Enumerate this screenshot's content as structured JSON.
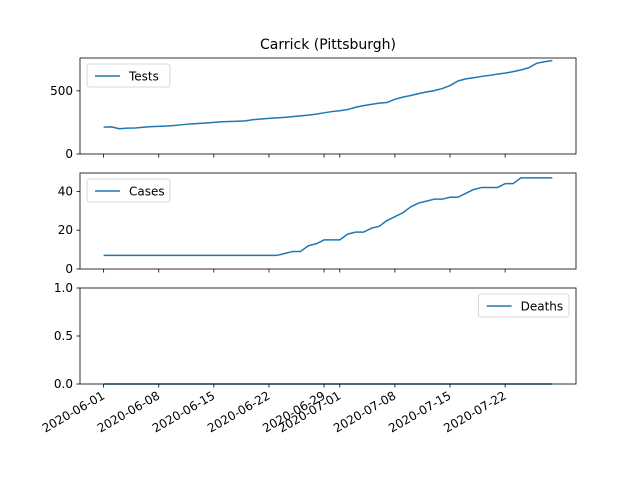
{
  "chart_data": {
    "type": "line",
    "title": "Carrick (Pittsburgh)",
    "line_color": "#1f77b4",
    "x_tick_labels": [
      "2020-06-01",
      "2020-06-08",
      "2020-06-15",
      "2020-06-22",
      "2020-06-29",
      "2020-07-01",
      "2020-07-08",
      "2020-07-15",
      "2020-07-22"
    ],
    "x_tick_dates": [
      "2020-06-01",
      "2020-06-08",
      "2020-06-15",
      "2020-06-22",
      "2020-06-29",
      "2020-07-01",
      "2020-07-08",
      "2020-07-15",
      "2020-07-22"
    ],
    "x_range": [
      "2020-05-29",
      "2020-07-31"
    ],
    "x": [
      "2020-06-01",
      "2020-06-02",
      "2020-06-03",
      "2020-06-04",
      "2020-06-05",
      "2020-06-06",
      "2020-06-07",
      "2020-06-08",
      "2020-06-09",
      "2020-06-10",
      "2020-06-11",
      "2020-06-12",
      "2020-06-13",
      "2020-06-14",
      "2020-06-15",
      "2020-06-16",
      "2020-06-17",
      "2020-06-18",
      "2020-06-19",
      "2020-06-20",
      "2020-06-21",
      "2020-06-22",
      "2020-06-23",
      "2020-06-24",
      "2020-06-25",
      "2020-06-26",
      "2020-06-27",
      "2020-06-28",
      "2020-06-29",
      "2020-06-30",
      "2020-07-01",
      "2020-07-02",
      "2020-07-03",
      "2020-07-04",
      "2020-07-05",
      "2020-07-06",
      "2020-07-07",
      "2020-07-08",
      "2020-07-09",
      "2020-07-10",
      "2020-07-11",
      "2020-07-12",
      "2020-07-13",
      "2020-07-14",
      "2020-07-15",
      "2020-07-16",
      "2020-07-17",
      "2020-07-18",
      "2020-07-19",
      "2020-07-20",
      "2020-07-21",
      "2020-07-22",
      "2020-07-23",
      "2020-07-24",
      "2020-07-25",
      "2020-07-26",
      "2020-07-27",
      "2020-07-28"
    ],
    "panels": [
      {
        "legend": "Tests",
        "legend_loc": "upper left",
        "ylim": [
          0,
          760
        ],
        "yticks": [
          0,
          500
        ],
        "y_tick_labels": [
          "0",
          "500"
        ],
        "values": [
          213,
          215,
          200,
          205,
          206,
          212,
          217,
          219,
          222,
          226,
          232,
          238,
          241,
          245,
          250,
          255,
          257,
          259,
          262,
          272,
          277,
          282,
          286,
          290,
          296,
          302,
          308,
          316,
          326,
          336,
          342,
          352,
          370,
          383,
          393,
          403,
          408,
          433,
          450,
          463,
          478,
          491,
          502,
          518,
          542,
          578,
          595,
          604,
          614,
          622,
          632,
          640,
          652,
          665,
          683,
          718,
          730,
          740
        ]
      },
      {
        "legend": "Cases",
        "legend_loc": "upper left",
        "ylim": [
          0,
          49.5
        ],
        "yticks": [
          0,
          20,
          40
        ],
        "y_tick_labels": [
          "0",
          "20",
          "40"
        ],
        "values": [
          7,
          7,
          7,
          7,
          7,
          7,
          7,
          7,
          7,
          7,
          7,
          7,
          7,
          7,
          7,
          7,
          7,
          7,
          7,
          7,
          7,
          7,
          7,
          8,
          9,
          9,
          12,
          13,
          15,
          15,
          15,
          18,
          19,
          19,
          21,
          22,
          25,
          27,
          29,
          32,
          34,
          35,
          36,
          36,
          37,
          37,
          39,
          41,
          42,
          42,
          42,
          44,
          44,
          47,
          47,
          47,
          47,
          47
        ]
      },
      {
        "legend": "Deaths",
        "legend_loc": "upper right",
        "ylim": [
          0,
          1.0
        ],
        "yticks": [
          0,
          0.5,
          1.0
        ],
        "y_tick_labels": [
          "0.0",
          "0.5",
          "1.0"
        ],
        "values": [
          0,
          0,
          0,
          0,
          0,
          0,
          0,
          0,
          0,
          0,
          0,
          0,
          0,
          0,
          0,
          0,
          0,
          0,
          0,
          0,
          0,
          0,
          0,
          0,
          0,
          0,
          0,
          0,
          0,
          0,
          0,
          0,
          0,
          0,
          0,
          0,
          0,
          0,
          0,
          0,
          0,
          0,
          0,
          0,
          0,
          0,
          0,
          0,
          0,
          0,
          0,
          0,
          0,
          0,
          0,
          0,
          0,
          0
        ]
      }
    ]
  }
}
